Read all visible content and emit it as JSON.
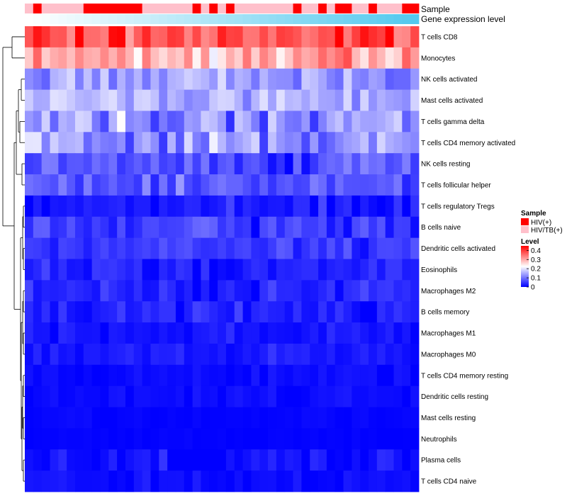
{
  "chart_data": {
    "type": "heatmap",
    "annotation_labels": [
      "Sample",
      "Gene expression level"
    ],
    "rows": [
      "T cells CD8",
      "Monocytes",
      "NK cells activated",
      "Mast cells activated",
      "T cells gamma delta",
      "T cells CD4 memory activated",
      "NK cells resting",
      "T cells follicular helper",
      "T cells regulatory  Tregs",
      "B cells naive",
      "Dendritic cells activated",
      "Eosinophils",
      "Macrophages M2",
      "B cells memory",
      "Macrophages M1",
      "Macrophages M0",
      "T cells CD4 memory resting",
      "Dendritic cells resting",
      "Mast cells resting",
      "Neutrophils",
      "Plasma cells",
      "T cells CD4 naive"
    ],
    "sample_groups": [
      1,
      0,
      1,
      1,
      1,
      1,
      1,
      0,
      0,
      0,
      0,
      0,
      0,
      0,
      1,
      1,
      1,
      1,
      1,
      1,
      0,
      1,
      0,
      1,
      0,
      1,
      1,
      1,
      1,
      1,
      1,
      1,
      0,
      1,
      1,
      0,
      1,
      0,
      0,
      1,
      1,
      0,
      1,
      1,
      1,
      0,
      0
    ],
    "legend": {
      "sample_title": "Sample",
      "sample_items": [
        {
          "label": "HIV(+)",
          "color": "#ff0000"
        },
        {
          "label": "HIV/TB(+)",
          "color": "#ffc0cb"
        }
      ],
      "level_title": "Level",
      "level_ticks": [
        "0.4",
        "0.3",
        "0.2",
        "0.1",
        "0"
      ],
      "level_range": [
        0,
        0.45
      ]
    },
    "gene_expression_gradient": [
      "#ffffff",
      "#53c9ee"
    ],
    "row_means": [
      0.38,
      0.3,
      0.14,
      0.16,
      0.14,
      0.13,
      0.07,
      0.08,
      0.02,
      0.05,
      0.05,
      0.03,
      0.03,
      0.03,
      0.02,
      0.02,
      0.01,
      0.01,
      0.004,
      0.002,
      0.015,
      0.01
    ],
    "row_spread": [
      0.07,
      0.06,
      0.05,
      0.05,
      0.08,
      0.07,
      0.05,
      0.04,
      0.03,
      0.04,
      0.03,
      0.03,
      0.03,
      0.03,
      0.02,
      0.02,
      0.015,
      0.015,
      0.006,
      0.004,
      0.03,
      0.015
    ],
    "n_columns": 47,
    "random_seed": 7
  },
  "colors": {
    "low": "#0000ff",
    "mid": "#ffffff",
    "high": "#ff0000",
    "dendrogram": "#000000"
  }
}
